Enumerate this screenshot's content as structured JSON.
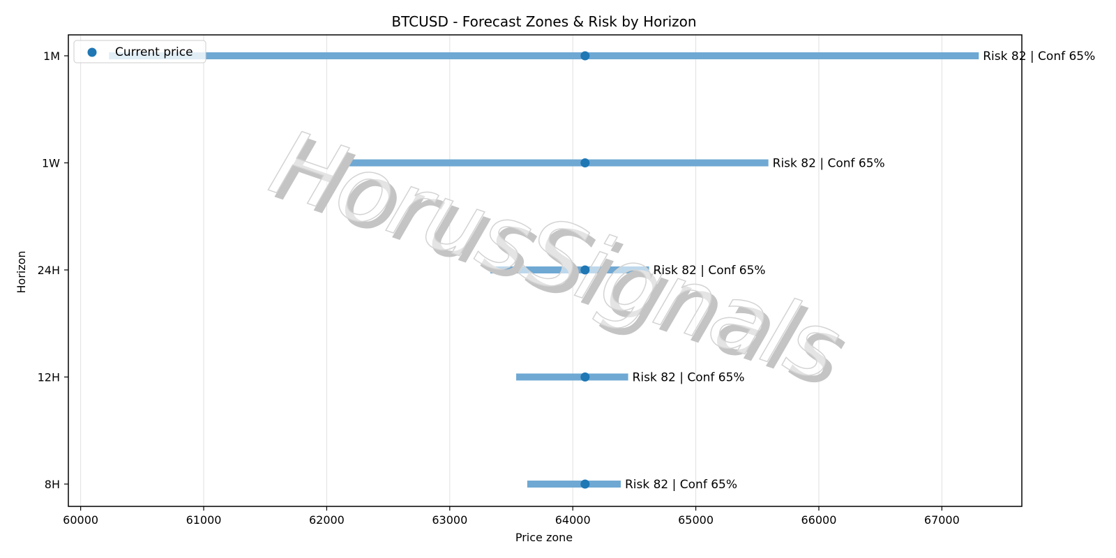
{
  "chart_data": {
    "type": "range",
    "title": "BTCUSD - Forecast Zones & Risk by Horizon",
    "xlabel": "Price zone",
    "ylabel": "Horizon",
    "xlim": [
      59900,
      67650
    ],
    "xticks": [
      60000,
      61000,
      62000,
      63000,
      64000,
      65000,
      66000,
      67000
    ],
    "xtick_labels": [
      "60000",
      "61000",
      "62000",
      "63000",
      "64000",
      "65000",
      "66000",
      "67000"
    ],
    "grid": "vertical",
    "categories": [
      "1M",
      "1W",
      "24H",
      "12H",
      "8H"
    ],
    "zones": [
      {
        "horizon": "1M",
        "low": 60230,
        "high": 67300,
        "annotation": "Risk 82 | Conf 65%"
      },
      {
        "horizon": "1W",
        "low": 62170,
        "high": 65590,
        "annotation": "Risk 82 | Conf 65%"
      },
      {
        "horizon": "24H",
        "low": 63330,
        "high": 64620,
        "annotation": "Risk 82 | Conf 65%"
      },
      {
        "horizon": "12H",
        "low": 63540,
        "high": 64450,
        "annotation": "Risk 82 | Conf 65%"
      },
      {
        "horizon": "8H",
        "low": 63630,
        "high": 64390,
        "annotation": "Risk 82 | Conf 65%"
      }
    ],
    "current_price": 64100,
    "legend": {
      "label": "Current price",
      "placement": "upper-left"
    },
    "colors": {
      "zone": "#6fa8d3",
      "marker": "#1f77b4",
      "grid": "#e0e0e0",
      "watermark": "#d3d3d3"
    },
    "watermark": "HorusSignals"
  }
}
